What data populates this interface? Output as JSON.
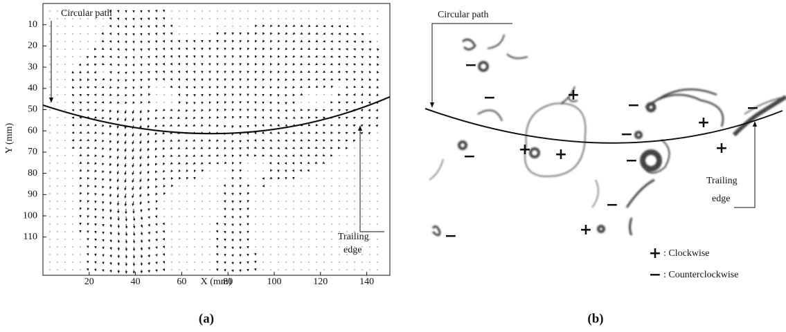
{
  "panel_a": {
    "label": "(a)",
    "x_axis_label": "X (mm)",
    "y_axis_label": "Y (mm)",
    "xlim": [
      0,
      150
    ],
    "ylim": [
      0,
      128
    ],
    "xticks": [
      20,
      40,
      60,
      80,
      100,
      120,
      140
    ],
    "yticks": [
      10,
      20,
      30,
      40,
      50,
      60,
      70,
      80,
      90,
      100,
      110
    ],
    "circular_path_label": "Circular path",
    "trailing_edge_label": [
      "Trailing",
      "edge"
    ]
  },
  "panel_b": {
    "label": "(b)",
    "circular_path_label": "Circular path",
    "trailing_edge_label": [
      "Trailing",
      "edge"
    ],
    "vortex_signs": [
      "−",
      "−",
      "+",
      "−",
      "+",
      "−",
      "−",
      "+",
      "−",
      "+",
      "+",
      "−",
      "−",
      "+",
      "−"
    ],
    "legend": [
      {
        "symbol": "+",
        "label": ": Clockwise"
      },
      {
        "symbol": "−",
        "label": ": Counterclockwise"
      }
    ]
  }
}
